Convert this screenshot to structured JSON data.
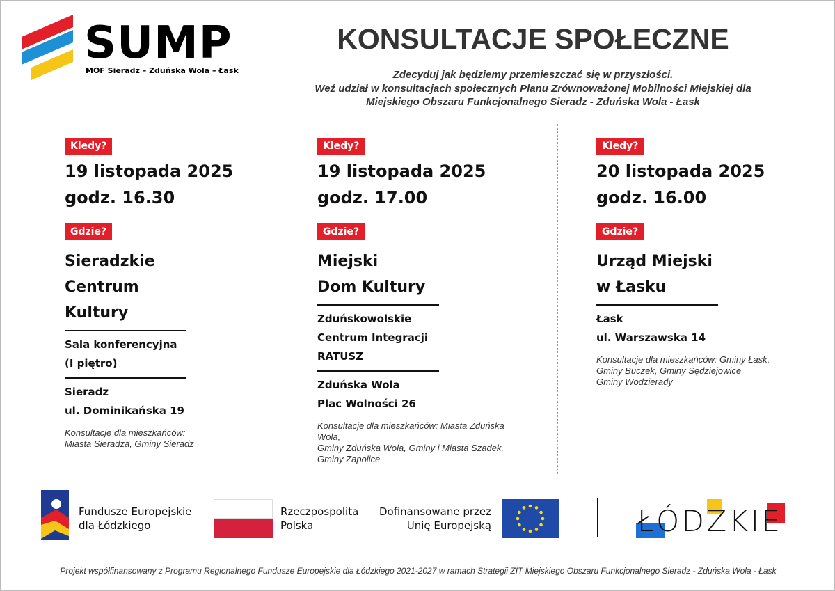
{
  "header": {
    "logo_title": "SUMP",
    "logo_subtitle": "MOF Sieradz – Zduńska Wola – Łask",
    "title": "KONSULTACJE SPOŁECZNE",
    "intro": [
      "Zdecyduj jak będziemy przemieszczać się w przyszłości.",
      "Weź udział w konsultacjach społecznych Planu Zrównoważonej Mobilności Miejskiej dla",
      "Miejskiego Obszaru Funkcjonalnego Sieradz - Zduńska Wola - Łask"
    ]
  },
  "events": [
    {
      "when_label": "Kiedy?",
      "date": "19 listopada 2025",
      "time": "godz. 16.30",
      "where_label": "Gdzie?",
      "venue": [
        "Sieradzkie",
        "Centrum",
        "Kultury"
      ],
      "details": [
        "Sala konferencyjna",
        "(I piętro)"
      ],
      "address": [
        "Sieradz",
        "ul. Dominikańska 19"
      ],
      "note": [
        "Konsultacje dla mieszkańców:",
        "Miasta Sieradza, Gminy Sieradz"
      ]
    },
    {
      "when_label": "Kiedy?",
      "date": "19 listopada 2025",
      "time": "godz. 17.00",
      "where_label": "Gdzie?",
      "venue": [
        "Miejski",
        "Dom Kultury"
      ],
      "details": [
        "Zduńskowolskie",
        "Centrum Integracji",
        "RATUSZ"
      ],
      "address": [
        "Zduńska Wola",
        "Plac Wolności 26"
      ],
      "note": [
        "Konsultacje dla mieszkańców: Miasta Zduńska Wola,",
        "Gminy Zduńska Wola, Gminy i Miasta Szadek,",
        "Gminy Zapolice"
      ]
    },
    {
      "when_label": "Kiedy?",
      "date": "20 listopada 2025",
      "time": "godz. 16.00",
      "where_label": "Gdzie?",
      "venue": [
        "Urząd Miejski",
        "w Łasku"
      ],
      "address": [
        "Łask",
        "ul. Warszawska 14"
      ],
      "note": [
        "Konsultacje dla mieszkańców: Gminy Łask,",
        "Gminy Buczek, Gminy Sędziejowice",
        "Gminy Wodzierady"
      ]
    }
  ],
  "logos": {
    "fe": [
      "Fundusze Europejskie",
      "dla Łódzkiego"
    ],
    "rp": [
      "Rzeczpospolita",
      "Polska"
    ],
    "eu": [
      "Dofinansowane przez",
      "Unię Europejską"
    ],
    "region": "ŁÓDZKIE"
  },
  "footer_note": "Projekt współfinansowany z Programu Regionalnego Fundusze Europejskie dla Łódzkiego 2021-2027 w ramach Strategii ZIT Miejskiego Obszaru  Funkcjonalnego Sieradz - Zduńska Wola - Łask"
}
